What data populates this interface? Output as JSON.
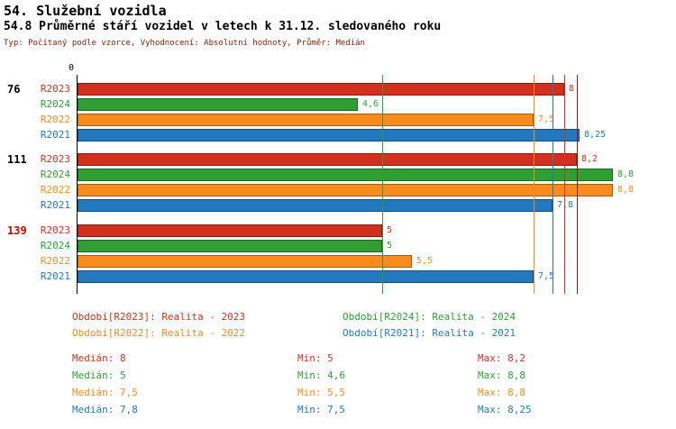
{
  "header": {
    "title": "54. Služební vozidla",
    "subtitle": "54.8 Průměrné stáří vozidel v letech k 31.12. sledovaného roku",
    "meta": "Typ: Počítaný podle vzorce, Vyhodnocení: Absolutní hodnoty, Průměr: Medián"
  },
  "chart_data": {
    "type": "bar",
    "orientation": "horizontal",
    "title": "54.8 Průměrné stáří vozidel v letech k 31.12. sledovaného roku",
    "x_axis": {
      "origin_label": "0",
      "min": 0,
      "max": 9.2,
      "gridlines": false
    },
    "legend_position": "bottom",
    "series_order": [
      "R2023",
      "R2024",
      "R2022",
      "R2021"
    ],
    "series_colors": {
      "R2023": {
        "fill": "#d2301f",
        "border": "#8c1a10"
      },
      "R2024": {
        "fill": "#2f9e33",
        "border": "#1d6420"
      },
      "R2022": {
        "fill": "#f78b1e",
        "border": "#a85a08"
      },
      "R2021": {
        "fill": "#2478be",
        "border": "#154d7a"
      }
    },
    "groups": [
      {
        "id": "76",
        "id_color": "#000000",
        "bars": [
          {
            "series": "R2023",
            "value": 8,
            "label": "8"
          },
          {
            "series": "R2024",
            "value": 4.6,
            "label": "4,6"
          },
          {
            "series": "R2022",
            "value": 7.5,
            "label": "7,5"
          },
          {
            "series": "R2021",
            "value": 8.25,
            "label": "8,25"
          }
        ]
      },
      {
        "id": "111",
        "id_color": "#000000",
        "bars": [
          {
            "series": "R2023",
            "value": 8.2,
            "label": "8,2"
          },
          {
            "series": "R2024",
            "value": 8.8,
            "label": "8,8"
          },
          {
            "series": "R2022",
            "value": 8.8,
            "label": "8,8"
          },
          {
            "series": "R2021",
            "value": 7.8,
            "label": "7,8"
          }
        ]
      },
      {
        "id": "139",
        "id_color": "#cc0000",
        "bars": [
          {
            "series": "R2023",
            "value": 5,
            "label": "5"
          },
          {
            "series": "R2024",
            "value": 5,
            "label": "5"
          },
          {
            "series": "R2022",
            "value": 5.5,
            "label": "5,5"
          },
          {
            "series": "R2021",
            "value": 7.5,
            "label": "7,5"
          }
        ]
      }
    ],
    "marker_lines": [
      {
        "name": "median-R2024",
        "value": 5,
        "color": "#2f9e33"
      },
      {
        "name": "median-R2022",
        "value": 7.5,
        "color": "#f78b1e"
      },
      {
        "name": "median-R2021",
        "value": 7.8,
        "color": "#2478be"
      },
      {
        "name": "median-R2023",
        "value": 8,
        "color": "#d2301f"
      },
      {
        "name": "max-R2023",
        "value": 8.2,
        "color": "#8c1a10"
      }
    ]
  },
  "legend": {
    "items": [
      {
        "label": "Období[R2023]: Realita - 2023",
        "color": "#d2301f",
        "row": 0,
        "col": 0
      },
      {
        "label": "Období[R2024]: Realita - 2024",
        "color": "#2f9e33",
        "row": 0,
        "col": 1
      },
      {
        "label": "Období[R2022]: Realita - 2022",
        "color": "#f78b1e",
        "row": 1,
        "col": 0
      },
      {
        "label": "Období[R2021]: Realita - 2021",
        "color": "#2478be",
        "row": 1,
        "col": 1
      }
    ]
  },
  "stats": {
    "rows": [
      {
        "series": "R2023",
        "color": "#d2301f",
        "median": "Medián: 8",
        "min": "Min: 5",
        "max": "Max: 8,2"
      },
      {
        "series": "R2024",
        "color": "#2f9e33",
        "median": "Medián: 5",
        "min": "Min: 4,6",
        "max": "Max: 8,8"
      },
      {
        "series": "R2022",
        "color": "#f78b1e",
        "median": "Medián: 7,5",
        "min": "Min: 5,5",
        "max": "Max: 8,8"
      },
      {
        "series": "R2021",
        "color": "#2478be",
        "median": "Medián: 7,8",
        "min": "Min: 7,5",
        "max": "Max: 8,25"
      }
    ]
  }
}
